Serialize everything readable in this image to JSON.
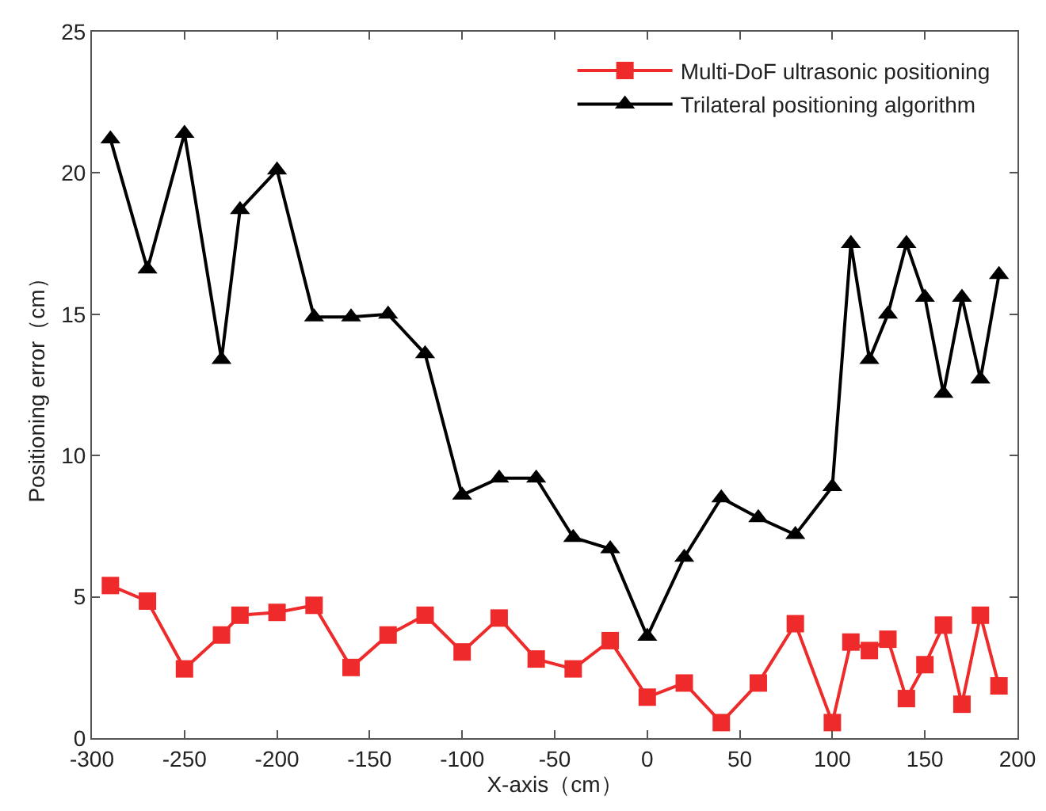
{
  "chart_data": {
    "type": "line",
    "xlabel": "X-axis（cm）",
    "ylabel": "Positioning error（cm）",
    "x": [
      -290,
      -270,
      -250,
      -230,
      -220,
      -200,
      -180,
      -160,
      -140,
      -120,
      -100,
      -80,
      -60,
      -40,
      -20,
      0,
      20,
      40,
      60,
      80,
      100,
      110,
      120,
      130,
      140,
      150,
      160,
      170,
      180,
      190
    ],
    "series": [
      {
        "name": "Multi-DoF ultrasonic positioning",
        "color": "#ee2a2a",
        "marker": "square",
        "values": [
          5.4,
          4.85,
          2.45,
          3.65,
          4.35,
          4.45,
          4.7,
          2.5,
          3.65,
          4.35,
          3.05,
          4.25,
          2.8,
          2.45,
          3.45,
          1.45,
          1.95,
          0.55,
          1.95,
          4.05,
          0.55,
          3.4,
          3.1,
          3.5,
          1.4,
          2.6,
          4.0,
          1.2,
          4.35,
          1.85
        ]
      },
      {
        "name": "Trilateral positioning algorithm",
        "color": "#000000",
        "marker": "triangle",
        "values": [
          21.2,
          16.6,
          21.4,
          13.4,
          18.7,
          20.1,
          14.9,
          14.9,
          15.0,
          13.6,
          8.6,
          9.2,
          9.2,
          7.1,
          6.7,
          3.6,
          6.4,
          8.5,
          7.8,
          7.2,
          8.9,
          17.5,
          13.4,
          15.0,
          17.5,
          15.6,
          12.2,
          15.6,
          12.7,
          16.4
        ]
      }
    ],
    "xlim": [
      -300,
      200
    ],
    "xticks": [
      -300,
      -250,
      -200,
      -150,
      -100,
      -50,
      0,
      50,
      100,
      150,
      200
    ],
    "ylim": [
      0,
      25
    ],
    "yticks": [
      0,
      5,
      10,
      15,
      20,
      25
    ],
    "grid": false,
    "legend": "top right",
    "line_style": "solid"
  }
}
